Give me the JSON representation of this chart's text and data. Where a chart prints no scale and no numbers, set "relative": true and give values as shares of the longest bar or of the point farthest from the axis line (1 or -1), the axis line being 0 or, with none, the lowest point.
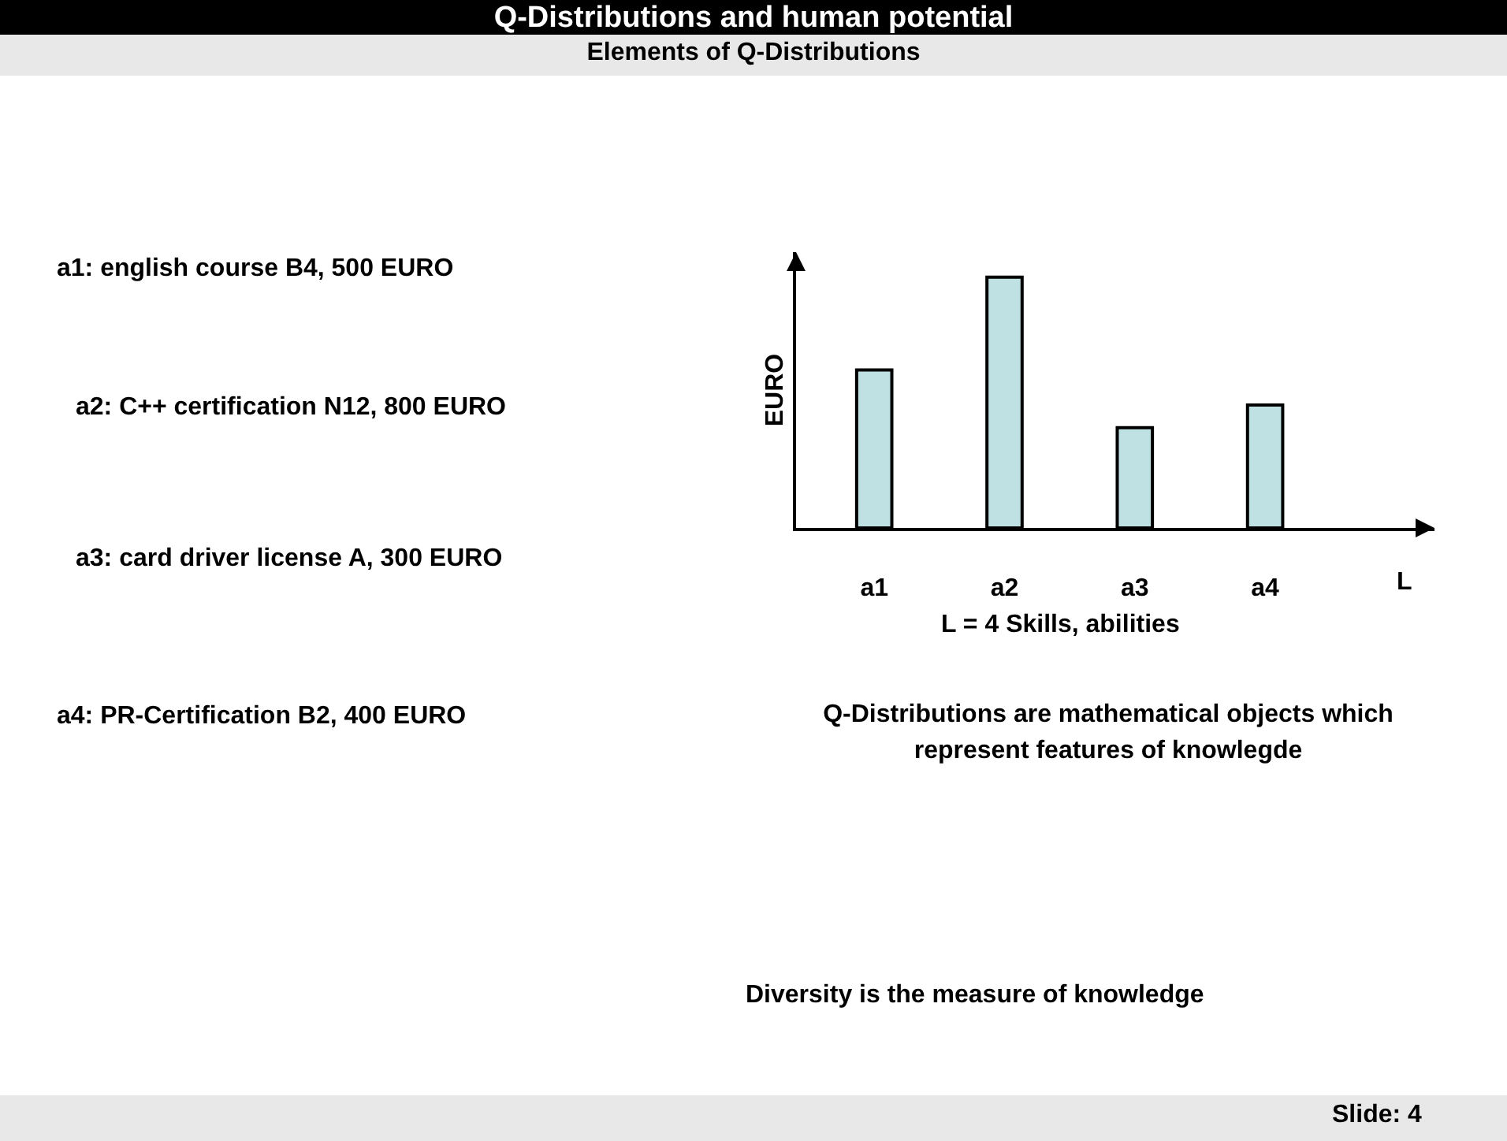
{
  "chart_data": {
    "type": "bar",
    "title": "Q-Distributions and human potential",
    "subtitle": "Elements of Q-Distributions",
    "categories": [
      "a1",
      "a2",
      "a3",
      "a4"
    ],
    "values": [
      0.63,
      1,
      0.4,
      0.49
    ],
    "relative": true,
    "color": "#bfe1e4",
    "xlabel": "L",
    "ylabel": "EURO",
    "grid": false,
    "legend": false,
    "annotations": [
      "a1: english course B4, 500 EURO",
      "a2: C++ certification N12, 800 EURO",
      "a3: card driver license A, 300 EURO",
      "a4: PR-Certification B2, 400 EURO",
      "L = 4 Skills, abilities",
      "Q-Distributions are mathematical objects which represent features of knowlegde",
      "Diversity is the measure of knowledge",
      "Slide: 4"
    ]
  }
}
